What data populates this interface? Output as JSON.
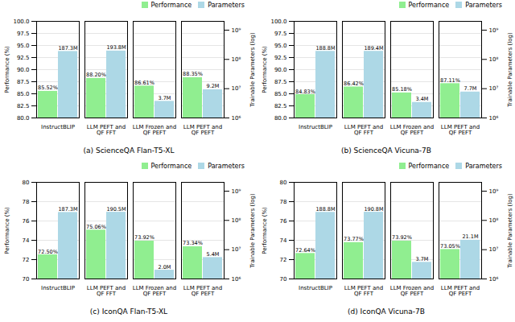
{
  "chart_data": [
    {
      "type": "bar",
      "title": "(a) ScienceQA Flan-T5-XL",
      "categories": [
        "InstructBLIP",
        "LLM PEFT and QF FFT",
        "LLM Frozen and QF PEFT",
        "LLM PEFT and QF PEFT"
      ],
      "series": [
        {
          "name": "Performance",
          "color": "#90EE90",
          "values": [
            85.52,
            88.2,
            86.61,
            88.35
          ],
          "value_labels": [
            "85.52%",
            "88.20%",
            "86.61%",
            "88.35%"
          ]
        },
        {
          "name": "Parameters",
          "color": "#ADD8E6",
          "axis": "y2",
          "values": [
            187300000,
            193800000,
            3700000,
            9200000
          ],
          "value_labels": [
            "187.3M",
            "193.8M",
            "3.7M",
            "9.2M"
          ]
        }
      ],
      "ylabel": "Performance (%)",
      "y2label": "Trainable Parameters (log)",
      "ylim": [
        80.0,
        100.0
      ],
      "yticks": [
        {
          "value": 80.0,
          "label": "80.0"
        },
        {
          "value": 82.5,
          "label": "82.5"
        },
        {
          "value": 85.0,
          "label": "85.0"
        },
        {
          "value": 87.5,
          "label": "87.5"
        },
        {
          "value": 90.0,
          "label": "90.0"
        },
        {
          "value": 92.5,
          "label": "92.5"
        },
        {
          "value": 95.0,
          "label": "95.0"
        },
        {
          "value": 97.5,
          "label": "97.5"
        },
        {
          "value": 100.0,
          "label": "100.0"
        }
      ],
      "y2lim": [
        1000000,
        2000000000
      ],
      "y2ticks": [
        {
          "value": 1000000,
          "label": "10⁶"
        },
        {
          "value": 10000000,
          "label": "10⁷"
        },
        {
          "value": 100000000,
          "label": "10⁸"
        },
        {
          "value": 1000000000,
          "label": "10⁹"
        }
      ],
      "log": "y2",
      "grid": true,
      "legend": "upper right",
      "data_labels": true
    },
    {
      "type": "bar",
      "title": "(b) ScienceQA Vicuna-7B",
      "categories": [
        "InstructBLIP",
        "LLM PEFT and QF FFT",
        "LLM Frozen and QF PEFT",
        "LLM PEFT and QF PEFT"
      ],
      "series": [
        {
          "name": "Performance",
          "color": "#90EE90",
          "values": [
            84.83,
            86.42,
            85.18,
            87.11
          ],
          "value_labels": [
            "84.83%",
            "86.42%",
            "85.18%",
            "87.11%"
          ]
        },
        {
          "name": "Parameters",
          "color": "#ADD8E6",
          "axis": "y2",
          "values": [
            188800000,
            189400000,
            3400000,
            7700000
          ],
          "value_labels": [
            "188.8M",
            "189.4M",
            "3.4M",
            "7.7M"
          ]
        }
      ],
      "ylabel": "Performance (%)",
      "y2label": "Trainable Parameters (log)",
      "ylim": [
        80.0,
        100.0
      ],
      "yticks": [
        {
          "value": 80.0,
          "label": "80.0"
        },
        {
          "value": 82.5,
          "label": "82.5"
        },
        {
          "value": 85.0,
          "label": "85.0"
        },
        {
          "value": 87.5,
          "label": "87.5"
        },
        {
          "value": 90.0,
          "label": "90.0"
        },
        {
          "value": 92.5,
          "label": "92.5"
        },
        {
          "value": 95.0,
          "label": "95.0"
        },
        {
          "value": 97.5,
          "label": "97.5"
        },
        {
          "value": 100.0,
          "label": "100.0"
        }
      ],
      "y2lim": [
        1000000,
        2000000000
      ],
      "y2ticks": [
        {
          "value": 1000000,
          "label": "10⁶"
        },
        {
          "value": 10000000,
          "label": "10⁷"
        },
        {
          "value": 100000000,
          "label": "10⁸"
        },
        {
          "value": 1000000000,
          "label": "10⁹"
        }
      ],
      "log": "y2",
      "grid": true,
      "legend": "upper right",
      "data_labels": true
    },
    {
      "type": "bar",
      "title": "(c) IconQA Flan-T5-XL",
      "categories": [
        "InstructBLIP",
        "LLM PEFT and QF FFT",
        "LLM Frozen and QF PEFT",
        "LLM PEFT and QF PEFT"
      ],
      "series": [
        {
          "name": "Performance",
          "color": "#90EE90",
          "values": [
            72.5,
            75.06,
            73.92,
            73.34
          ],
          "value_labels": [
            "72.50%",
            "75.06%",
            "73.92%",
            "73.34%"
          ]
        },
        {
          "name": "Parameters",
          "color": "#ADD8E6",
          "axis": "y2",
          "values": [
            187300000,
            190500000,
            2000000,
            5400000
          ],
          "value_labels": [
            "187.3M",
            "190.5M",
            "2.0M",
            "5.4M"
          ]
        }
      ],
      "ylabel": "Performance (%)",
      "y2label": "Trainable Parameters (log)",
      "ylim": [
        70.0,
        80.0
      ],
      "yticks": [
        70,
        72,
        74,
        76,
        78,
        80
      ],
      "y2lim": [
        1000000,
        2000000000
      ],
      "y2ticks": [
        {
          "value": 1000000,
          "label": "10⁶"
        },
        {
          "value": 10000000,
          "label": "10⁷"
        },
        {
          "value": 100000000,
          "label": "10⁸"
        },
        {
          "value": 1000000000,
          "label": "10⁹"
        }
      ],
      "log": "y2",
      "grid": true,
      "legend": "upper right",
      "data_labels": true
    },
    {
      "type": "bar",
      "title": "(d) IconQA Vicuna-7B",
      "categories": [
        "InstructBLIP",
        "LLM PEFT and QF FFT",
        "LLM Frozen and QF PEFT",
        "LLM PEFT and QF PEFT"
      ],
      "series": [
        {
          "name": "Performance",
          "color": "#90EE90",
          "values": [
            72.64,
            73.77,
            73.92,
            73.05
          ],
          "value_labels": [
            "72.64%",
            "73.77%",
            "73.92%",
            "73.05%"
          ]
        },
        {
          "name": "Parameters",
          "color": "#ADD8E6",
          "axis": "y2",
          "values": [
            188800000,
            190800000,
            3700000,
            21100000
          ],
          "value_labels": [
            "188.8M",
            "190.8M",
            "3.7M",
            "21.1M"
          ]
        }
      ],
      "ylabel": "Performance (%)",
      "y2label": "Trainable Parameters (log)",
      "ylim": [
        70.0,
        80.0
      ],
      "yticks": [
        70,
        72,
        74,
        76,
        78,
        80
      ],
      "y2lim": [
        1000000,
        2000000000
      ],
      "y2ticks": [
        {
          "value": 1000000,
          "label": "10⁶"
        },
        {
          "value": 10000000,
          "label": "10⁷"
        },
        {
          "value": 100000000,
          "label": "10⁸"
        },
        {
          "value": 1000000000,
          "label": "10⁹"
        }
      ],
      "log": "y2",
      "grid": true,
      "legend": "upper right",
      "data_labels": true
    }
  ]
}
